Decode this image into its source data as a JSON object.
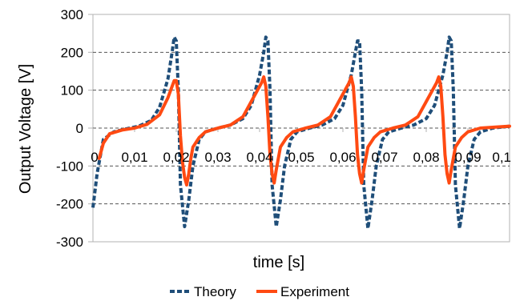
{
  "chart_data": {
    "type": "line",
    "xlabel": "time [s]",
    "ylabel": "Output Voltage [V]",
    "xlim": [
      0,
      0.1
    ],
    "ylim": [
      -300,
      300
    ],
    "x_ticks": [
      "0",
      "0,01",
      "0,02",
      "0,03",
      "0,04",
      "0,05",
      "0,06",
      "0,07",
      "0,08",
      "0,09",
      "0,1"
    ],
    "y_ticks": [
      "300",
      "200",
      "100",
      "0",
      "-100",
      "-200",
      "-300"
    ],
    "grid": "horizontal",
    "legend_position": "bottom",
    "series": [
      {
        "name": "Theory",
        "color": "#1f4e79",
        "style": "dashed",
        "x": [
          0,
          0.001,
          0.0025,
          0.005,
          0.008,
          0.011,
          0.014,
          0.016,
          0.018,
          0.019,
          0.0195,
          0.02,
          0.0205,
          0.021,
          0.022,
          0.023,
          0.024,
          0.0255,
          0.027,
          0.03,
          0.033,
          0.036,
          0.038,
          0.04,
          0.041,
          0.0415,
          0.042,
          0.0425,
          0.043,
          0.044,
          0.045,
          0.046,
          0.0475,
          0.049,
          0.052,
          0.055,
          0.058,
          0.06,
          0.062,
          0.063,
          0.0635,
          0.064,
          0.0645,
          0.065,
          0.066,
          0.067,
          0.068,
          0.0695,
          0.071,
          0.074,
          0.077,
          0.08,
          0.082,
          0.084,
          0.085,
          0.0855,
          0.086,
          0.0865,
          0.087,
          0.088,
          0.089,
          0.09,
          0.0915,
          0.093,
          0.096,
          0.1
        ],
        "y": [
          -210,
          -120,
          -30,
          -10,
          -2,
          5,
          20,
          55,
          130,
          200,
          240,
          230,
          100,
          -150,
          -260,
          -190,
          -100,
          -30,
          -10,
          0,
          8,
          25,
          60,
          140,
          200,
          240,
          230,
          100,
          -150,
          -260,
          -190,
          -100,
          -30,
          -10,
          0,
          8,
          25,
          60,
          140,
          200,
          230,
          230,
          100,
          -150,
          -265,
          -190,
          -100,
          -30,
          -10,
          0,
          8,
          25,
          60,
          140,
          200,
          240,
          230,
          100,
          -150,
          -265,
          -190,
          -100,
          -30,
          -10,
          0,
          5
        ]
      },
      {
        "name": "Experiment",
        "color": "#ff4a12",
        "style": "solid",
        "x": [
          0.0015,
          0.0025,
          0.004,
          0.007,
          0.01,
          0.013,
          0.016,
          0.018,
          0.0195,
          0.02,
          0.0205,
          0.021,
          0.0215,
          0.022,
          0.0225,
          0.023,
          0.0235,
          0.024,
          0.0255,
          0.027,
          0.03,
          0.033,
          0.036,
          0.038,
          0.0405,
          0.041,
          0.0415,
          0.042,
          0.0425,
          0.043,
          0.0435,
          0.044,
          0.0445,
          0.045,
          0.0465,
          0.048,
          0.051,
          0.054,
          0.057,
          0.059,
          0.0615,
          0.062,
          0.0625,
          0.063,
          0.0635,
          0.064,
          0.0645,
          0.065,
          0.0655,
          0.066,
          0.0675,
          0.069,
          0.072,
          0.075,
          0.078,
          0.08,
          0.0825,
          0.083,
          0.0835,
          0.084,
          0.0845,
          0.085,
          0.0855,
          0.086,
          0.0865,
          0.087,
          0.0885,
          0.09,
          0.093,
          0.097,
          0.1
        ],
        "y": [
          -80,
          -40,
          -15,
          -5,
          0,
          10,
          35,
          80,
          125,
          125,
          90,
          -20,
          -90,
          -130,
          -150,
          -120,
          -80,
          -50,
          -25,
          -10,
          0,
          8,
          30,
          70,
          120,
          135,
          110,
          30,
          -70,
          -120,
          -145,
          -110,
          -80,
          -50,
          -25,
          -10,
          0,
          8,
          30,
          70,
          120,
          135,
          110,
          30,
          -70,
          -120,
          -145,
          -110,
          -80,
          -50,
          -25,
          -10,
          0,
          8,
          30,
          70,
          120,
          135,
          110,
          30,
          -70,
          -120,
          -145,
          -110,
          -80,
          -50,
          -25,
          -10,
          0,
          3,
          5
        ]
      }
    ]
  }
}
